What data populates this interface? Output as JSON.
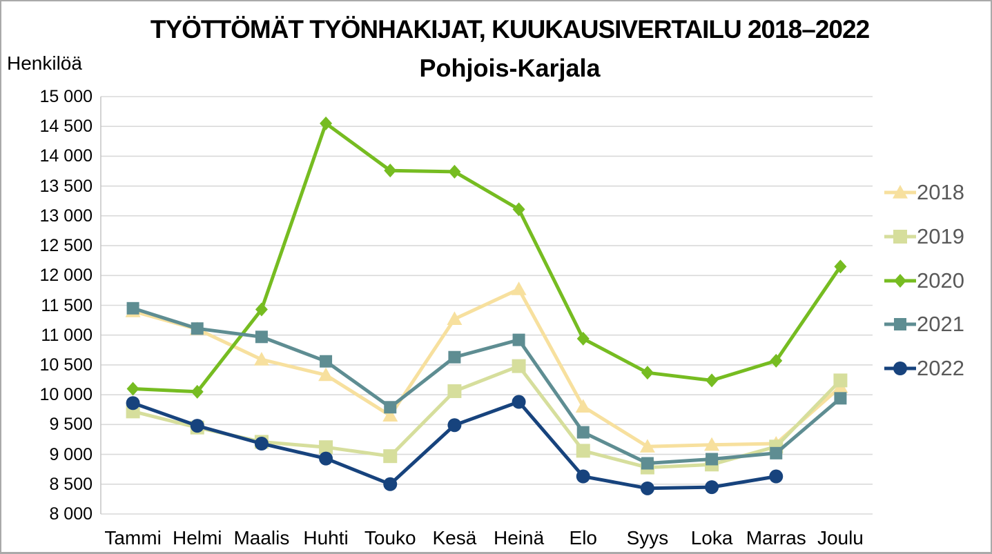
{
  "chart_data": {
    "type": "line",
    "title": "TYÖTTÖMÄT TYÖNHAKIJAT, KUUKAUSIVERTAILU 2018–2022",
    "subtitle": "Pohjois-Karjala",
    "y_unit_label": "Henkilöä",
    "categories": [
      "Tammi",
      "Helmi",
      "Maalis",
      "Huhti",
      "Touko",
      "Kesä",
      "Heinä",
      "Elo",
      "Syys",
      "Loka",
      "Marras",
      "Joulu"
    ],
    "ylim": [
      8000,
      15000
    ],
    "ytick_step": 500,
    "y_ticks": [
      "15 000",
      "14 500",
      "14 000",
      "13 500",
      "13 000",
      "12 500",
      "12 000",
      "11 500",
      "11 000",
      "10 500",
      "10 000",
      "9 500",
      "9 000",
      "8 500",
      "8 000"
    ],
    "grid": true,
    "legend_position": "right",
    "series": [
      {
        "name": "2018",
        "color": "#F7E09E",
        "marker": "triangle",
        "marker_size": 11,
        "values": [
          11400,
          11100,
          10590,
          10330,
          9650,
          11270,
          11770,
          9800,
          9130,
          9160,
          9180,
          10130
        ]
      },
      {
        "name": "2019",
        "color": "#D6DE9C",
        "marker": "square",
        "marker_size": 10,
        "values": [
          9720,
          9450,
          9210,
          9120,
          8970,
          10060,
          10480,
          9060,
          8780,
          8830,
          9130,
          10240
        ]
      },
      {
        "name": "2020",
        "color": "#76BC21",
        "marker": "diamond",
        "marker_size": 10,
        "values": [
          10100,
          10050,
          11430,
          14550,
          13760,
          13740,
          13110,
          10940,
          10370,
          10240,
          10570,
          12150
        ]
      },
      {
        "name": "2021",
        "color": "#5E8D92",
        "marker": "square",
        "marker_size": 9,
        "values": [
          11450,
          11110,
          10970,
          10560,
          9790,
          10630,
          10920,
          9370,
          8850,
          8920,
          9020,
          9940
        ]
      },
      {
        "name": "2022",
        "color": "#17437D",
        "marker": "circle",
        "marker_size": 10,
        "values": [
          9860,
          9480,
          9180,
          8930,
          8500,
          9490,
          9880,
          8630,
          8430,
          8450,
          8630,
          null
        ]
      }
    ]
  },
  "colors": {
    "grid": "#D9D9D9",
    "axis": "#C6C6C6",
    "legend_text": "#595959",
    "title_text": "#000000",
    "frame_border": "#A9A9A9",
    "background": "#FFFFFF"
  }
}
